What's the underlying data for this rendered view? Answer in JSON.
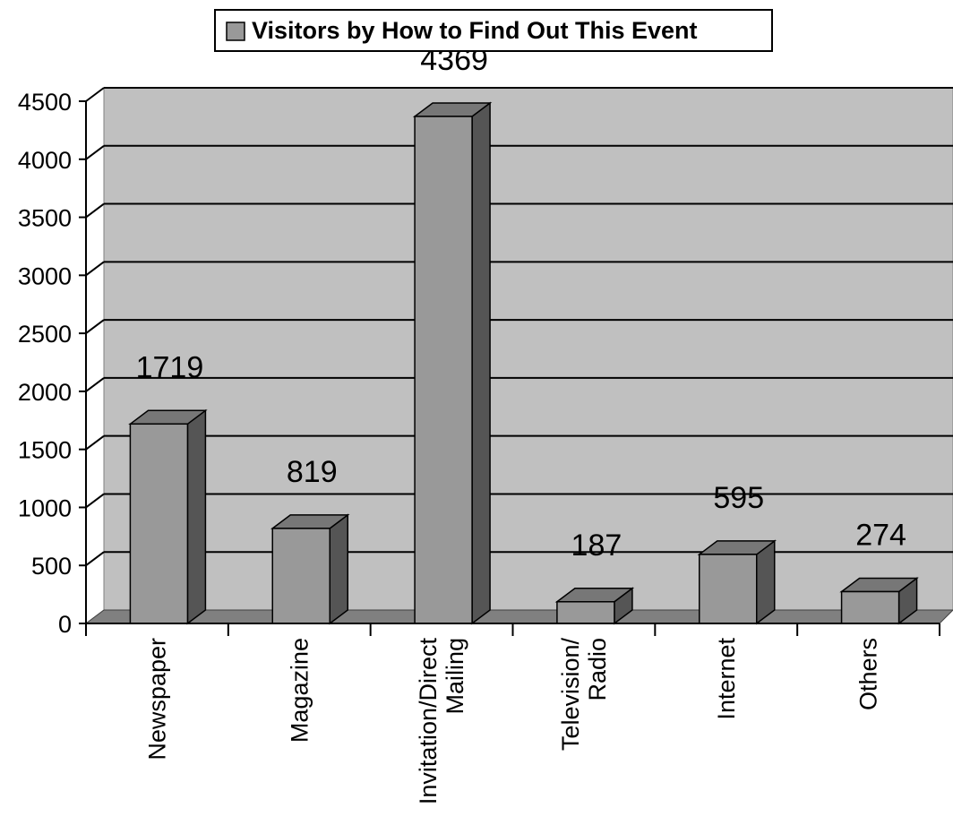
{
  "chart_data": {
    "type": "bar",
    "legend": {
      "label": "Visitors by How to Find Out This Event",
      "position": "top"
    },
    "categories": [
      [
        "Newspaper"
      ],
      [
        "Magazine"
      ],
      [
        "Invitation/Direct",
        "Mailing"
      ],
      [
        "Television/",
        "Radio"
      ],
      [
        "Internet"
      ],
      [
        "Others"
      ]
    ],
    "series": [
      {
        "name": "Visitors by How to Find Out This Event",
        "values": [
          1719,
          819,
          4369,
          187,
          595,
          274
        ]
      }
    ],
    "data_labels": [
      "1719",
      "819",
      "4369",
      "187",
      "595",
      "274"
    ],
    "y_ticks": [
      "0",
      "500",
      "1000",
      "1500",
      "2000",
      "2500",
      "3000",
      "3500",
      "4000",
      "4500"
    ],
    "ylim": [
      0,
      4500
    ],
    "grid": true,
    "style": "3d-columns",
    "colors": {
      "wall": "#c0c0c0",
      "floor": "#808080",
      "bar_front": "#999999",
      "bar_top": "#777777",
      "bar_side": "#555555",
      "gridline": "#000000"
    }
  }
}
